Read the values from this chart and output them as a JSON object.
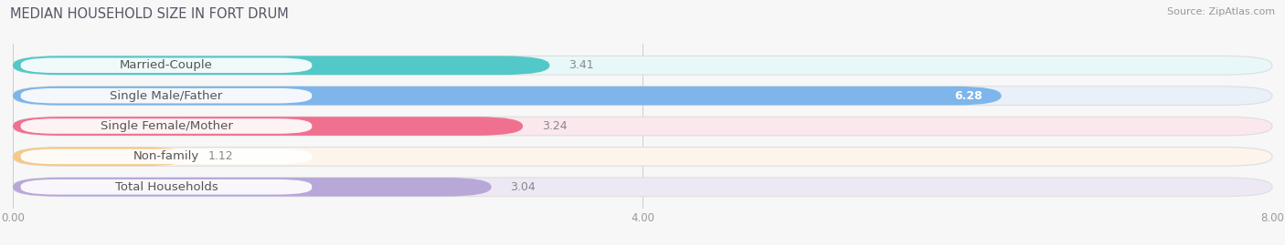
{
  "title": "MEDIAN HOUSEHOLD SIZE IN FORT DRUM",
  "source": "Source: ZipAtlas.com",
  "categories": [
    "Married-Couple",
    "Single Male/Father",
    "Single Female/Mother",
    "Non-family",
    "Total Households"
  ],
  "values": [
    3.41,
    6.28,
    3.24,
    1.12,
    3.04
  ],
  "bar_colors": [
    "#52C8C8",
    "#7EB5EA",
    "#F07090",
    "#F5C98A",
    "#B8A8D8"
  ],
  "bar_bg_colors": [
    "#E8F8F8",
    "#EAF0FA",
    "#FAE8EC",
    "#FDF5EC",
    "#EEE8F5"
  ],
  "xlim": [
    0,
    8.0
  ],
  "xticks": [
    0.0,
    4.0,
    8.0
  ],
  "xticklabels": [
    "0.00",
    "4.00",
    "8.00"
  ],
  "bar_height": 0.62,
  "background_color": "#F7F7F7",
  "title_fontsize": 10.5,
  "label_fontsize": 9.5,
  "value_fontsize": 9,
  "source_fontsize": 8,
  "label_badge_color": "#FFFFFF",
  "label_text_color": "#555555",
  "value_label_inside_color": "#FFFFFF",
  "value_label_outside_color": "#888888"
}
